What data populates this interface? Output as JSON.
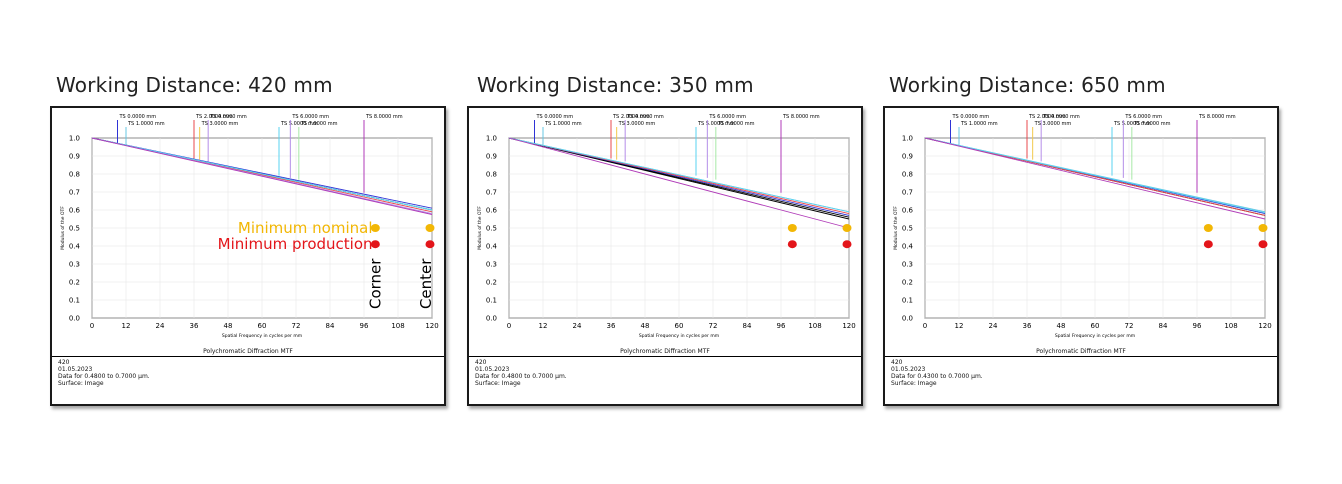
{
  "panels": [
    {
      "title": "Working Distance: 420 mm",
      "footer_title": "Polychromatic Diffraction MTF",
      "footer_lines": [
        "420",
        "01.05.2023",
        "Data for 0.4800 to 0.7000 µm.",
        "Surface: Image"
      ],
      "annotations": {
        "nominal_label": "Minimum nominal",
        "production_label": "Minimum production",
        "corner_label": "Corner",
        "center_label": "Center"
      }
    },
    {
      "title": "Working Distance: 350 mm",
      "footer_title": "Polychromatic Diffraction MTF",
      "footer_lines": [
        "420",
        "01.05.2023",
        "Data for 0.4800 to 0.7000 µm.",
        "Surface: Image"
      ]
    },
    {
      "title": "Working Distance: 650 mm",
      "footer_title": "Polychromatic Diffraction MTF",
      "footer_lines": [
        "420",
        "01.05.2023",
        "Data for 0.4300 to 0.7000 µm.",
        "Surface: Image"
      ]
    }
  ],
  "colors": {
    "nominal": "#f2b705",
    "production": "#e3151a"
  },
  "chart_data": [
    {
      "type": "line",
      "title": "Polychromatic Diffraction MTF",
      "xlabel": "Spatial Frequency in cycles per mm",
      "ylabel": "Modulus of the OTF",
      "xlim": [
        0,
        120
      ],
      "ylim": [
        0,
        1.0
      ],
      "xticks": [
        "0",
        "12",
        "24",
        "36",
        "48",
        "60",
        "72",
        "84",
        "96",
        "108",
        "120"
      ],
      "yticks": [
        "0.0",
        "0.1",
        "0.2",
        "0.3",
        "0.4",
        "0.5",
        "0.6",
        "0.7",
        "0.8",
        "0.9",
        "1.0"
      ],
      "grid": true,
      "field_legend": [
        {
          "label": "TS 0.0000 mm",
          "x": 9,
          "color": "#2f33d6"
        },
        {
          "label": "TS 1.0000 mm",
          "x": 12,
          "color": "#67c7e3"
        },
        {
          "label": "TS 2.0000 mm",
          "x": 36,
          "color": "#e8484d"
        },
        {
          "label": "TS 3.0000 mm",
          "x": 38,
          "color": "#f2c94c"
        },
        {
          "label": "TS 4.0000 mm",
          "x": 41,
          "color": "#b58de8"
        },
        {
          "label": "TS 5.0000 mm",
          "x": 66,
          "color": "#5ad3f0"
        },
        {
          "label": "TS 6.0000 mm",
          "x": 70,
          "color": "#b48ee8"
        },
        {
          "label": "TS 7.0000 mm",
          "x": 73,
          "color": "#a6e8a6"
        },
        {
          "label": "TS 8.0000 mm",
          "x": 96,
          "color": "#b03bb8"
        }
      ],
      "series": [
        {
          "color": "#000000",
          "x": [
            0,
            120
          ],
          "y": [
            1.0,
            0.6
          ]
        },
        {
          "color": "#2f33d6",
          "x": [
            0,
            120
          ],
          "y": [
            1.0,
            0.61
          ]
        },
        {
          "color": "#67c7e3",
          "x": [
            0,
            120
          ],
          "y": [
            1.0,
            0.6
          ]
        },
        {
          "color": "#e8484d",
          "x": [
            0,
            120
          ],
          "y": [
            1.0,
            0.59
          ]
        },
        {
          "color": "#b58de8",
          "x": [
            0,
            120
          ],
          "y": [
            1.0,
            0.58
          ]
        },
        {
          "color": "#5ad3f0",
          "x": [
            0,
            120
          ],
          "y": [
            1.0,
            0.6
          ]
        },
        {
          "color": "#b03bb8",
          "x": [
            0,
            120
          ],
          "y": [
            1.0,
            0.575
          ]
        }
      ],
      "markers": [
        {
          "kind": "nominal",
          "x": 100,
          "y": 0.5
        },
        {
          "kind": "nominal",
          "x": 120,
          "y": 0.5
        },
        {
          "kind": "production",
          "x": 100,
          "y": 0.41
        },
        {
          "kind": "production",
          "x": 120,
          "y": 0.41
        }
      ]
    },
    {
      "type": "line",
      "title": "Polychromatic Diffraction MTF",
      "xlabel": "Spatial Frequency in cycles per mm",
      "ylabel": "Modulus of the OTF",
      "xlim": [
        0,
        120
      ],
      "ylim": [
        0,
        1.0
      ],
      "xticks": [
        "0",
        "12",
        "24",
        "36",
        "48",
        "60",
        "72",
        "84",
        "96",
        "108",
        "120"
      ],
      "yticks": [
        "0.0",
        "0.1",
        "0.2",
        "0.3",
        "0.4",
        "0.5",
        "0.6",
        "0.7",
        "0.8",
        "0.9",
        "1.0"
      ],
      "grid": true,
      "field_legend": [
        {
          "label": "TS 0.0000 mm",
          "x": 9,
          "color": "#2f33d6"
        },
        {
          "label": "TS 1.0000 mm",
          "x": 12,
          "color": "#67c7e3"
        },
        {
          "label": "TS 2.0000 mm",
          "x": 36,
          "color": "#e8484d"
        },
        {
          "label": "TS 3.0000 mm",
          "x": 38,
          "color": "#f2c94c"
        },
        {
          "label": "TS 4.0000 mm",
          "x": 41,
          "color": "#b58de8"
        },
        {
          "label": "TS 5.0000 mm",
          "x": 66,
          "color": "#5ad3f0"
        },
        {
          "label": "TS 6.0000 mm",
          "x": 70,
          "color": "#b48ee8"
        },
        {
          "label": "TS 7.0000 mm",
          "x": 73,
          "color": "#a6e8a6"
        },
        {
          "label": "TS 8.0000 mm",
          "x": 96,
          "color": "#b03bb8"
        }
      ],
      "series": [
        {
          "color": "#000000",
          "x": [
            0,
            120
          ],
          "y": [
            1.0,
            0.56
          ]
        },
        {
          "color": "#000000",
          "x": [
            0,
            120
          ],
          "y": [
            1.0,
            0.55
          ]
        },
        {
          "color": "#2f33d6",
          "x": [
            0,
            120
          ],
          "y": [
            1.0,
            0.57
          ]
        },
        {
          "color": "#67c7e3",
          "x": [
            0,
            120
          ],
          "y": [
            1.0,
            0.59
          ]
        },
        {
          "color": "#e8484d",
          "x": [
            0,
            120
          ],
          "y": [
            1.0,
            0.58
          ]
        },
        {
          "color": "#5ad3f0",
          "x": [
            0,
            120
          ],
          "y": [
            1.0,
            0.59
          ]
        },
        {
          "color": "#b03bb8",
          "x": [
            0,
            120
          ],
          "y": [
            1.0,
            0.5
          ]
        }
      ],
      "markers": [
        {
          "kind": "nominal",
          "x": 100,
          "y": 0.5
        },
        {
          "kind": "nominal",
          "x": 120,
          "y": 0.5
        },
        {
          "kind": "production",
          "x": 100,
          "y": 0.41
        },
        {
          "kind": "production",
          "x": 120,
          "y": 0.41
        }
      ]
    },
    {
      "type": "line",
      "title": "Polychromatic Diffraction MTF",
      "xlabel": "Spatial Frequency in cycles per mm",
      "ylabel": "Modulus of the OTF",
      "xlim": [
        0,
        120
      ],
      "ylim": [
        0,
        1.0
      ],
      "xticks": [
        "0",
        "12",
        "24",
        "36",
        "48",
        "60",
        "72",
        "84",
        "96",
        "108",
        "120"
      ],
      "yticks": [
        "0.0",
        "0.1",
        "0.2",
        "0.3",
        "0.4",
        "0.5",
        "0.6",
        "0.7",
        "0.8",
        "0.9",
        "1.0"
      ],
      "grid": true,
      "field_legend": [
        {
          "label": "TS 0.0000 mm",
          "x": 9,
          "color": "#2f33d6"
        },
        {
          "label": "TS 1.0000 mm",
          "x": 12,
          "color": "#67c7e3"
        },
        {
          "label": "TS 2.0000 mm",
          "x": 36,
          "color": "#e8484d"
        },
        {
          "label": "TS 3.0000 mm",
          "x": 38,
          "color": "#f2c94c"
        },
        {
          "label": "TS 4.0000 mm",
          "x": 41,
          "color": "#b58de8"
        },
        {
          "label": "TS 5.0000 mm",
          "x": 66,
          "color": "#5ad3f0"
        },
        {
          "label": "TS 6.0000 mm",
          "x": 70,
          "color": "#b48ee8"
        },
        {
          "label": "TS 7.0000 mm",
          "x": 73,
          "color": "#a6e8a6"
        },
        {
          "label": "TS 8.0000 mm",
          "x": 96,
          "color": "#b03bb8"
        }
      ],
      "series": [
        {
          "color": "#000000",
          "x": [
            0,
            120
          ],
          "y": [
            1.0,
            0.57
          ]
        },
        {
          "color": "#2f33d6",
          "x": [
            0,
            120
          ],
          "y": [
            1.0,
            0.58
          ]
        },
        {
          "color": "#67c7e3",
          "x": [
            0,
            120
          ],
          "y": [
            1.0,
            0.59
          ]
        },
        {
          "color": "#e8484d",
          "x": [
            0,
            120
          ],
          "y": [
            1.0,
            0.57
          ]
        },
        {
          "color": "#5ad3f0",
          "x": [
            0,
            120
          ],
          "y": [
            1.0,
            0.585
          ]
        },
        {
          "color": "#b03bb8",
          "x": [
            0,
            120
          ],
          "y": [
            1.0,
            0.55
          ]
        }
      ],
      "markers": [
        {
          "kind": "nominal",
          "x": 100,
          "y": 0.5
        },
        {
          "kind": "nominal",
          "x": 120,
          "y": 0.5
        },
        {
          "kind": "production",
          "x": 100,
          "y": 0.41
        },
        {
          "kind": "production",
          "x": 120,
          "y": 0.41
        }
      ]
    }
  ]
}
